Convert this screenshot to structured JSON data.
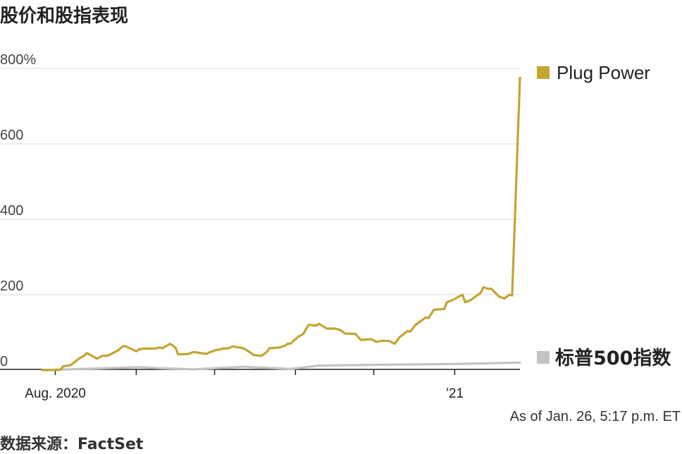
{
  "title": "股价和股指表现",
  "note": "As of Jan. 26, 5:17 p.m. ET",
  "source": "数据来源：FactSet",
  "colors": {
    "plug": "#c3a532",
    "sp500": "#c3c3c5",
    "grid": "#dddddd",
    "axis": "#222222"
  },
  "chart_data": {
    "type": "line",
    "ylim": [
      0,
      800
    ],
    "yticks": [
      {
        "value": 800,
        "label": "800%"
      },
      {
        "value": 600,
        "label": "600"
      },
      {
        "value": 400,
        "label": "400"
      },
      {
        "value": 200,
        "label": "200"
      },
      {
        "value": 0,
        "label": "0"
      }
    ],
    "xlim": [
      "2020-07-27",
      "2021-01-26"
    ],
    "xticks": [
      {
        "date": "2020-08-01",
        "label": "Aug. 2020"
      },
      {
        "date": "2020-09-01",
        "label": ""
      },
      {
        "date": "2020-10-01",
        "label": ""
      },
      {
        "date": "2020-11-01",
        "label": ""
      },
      {
        "date": "2020-12-01",
        "label": ""
      },
      {
        "date": "2021-01-01",
        "label": "’21"
      }
    ],
    "series": [
      {
        "name": "Plug Power",
        "color": "#c3a532",
        "points": [
          [
            "2020-07-27",
            0
          ],
          [
            "2020-07-30",
            0
          ],
          [
            "2020-08-03",
            1
          ],
          [
            "2020-08-04",
            10
          ],
          [
            "2020-08-06",
            12
          ],
          [
            "2020-08-07",
            14
          ],
          [
            "2020-08-10",
            30
          ],
          [
            "2020-08-12",
            38
          ],
          [
            "2020-08-13",
            45
          ],
          [
            "2020-08-14",
            42
          ],
          [
            "2020-08-17",
            30
          ],
          [
            "2020-08-19",
            38
          ],
          [
            "2020-08-21",
            38
          ],
          [
            "2020-08-25",
            52
          ],
          [
            "2020-08-27",
            64
          ],
          [
            "2020-08-28",
            63
          ],
          [
            "2020-09-01",
            50
          ],
          [
            "2020-09-02",
            55
          ],
          [
            "2020-09-04",
            57
          ],
          [
            "2020-09-08",
            57
          ],
          [
            "2020-09-10",
            60
          ],
          [
            "2020-09-11",
            58
          ],
          [
            "2020-09-14",
            70
          ],
          [
            "2020-09-16",
            60
          ],
          [
            "2020-09-17",
            42
          ],
          [
            "2020-09-18",
            42
          ],
          [
            "2020-09-21",
            43
          ],
          [
            "2020-09-23",
            48
          ],
          [
            "2020-09-25",
            46
          ],
          [
            "2020-09-28",
            43
          ],
          [
            "2020-09-29",
            47
          ],
          [
            "2020-10-01",
            52
          ],
          [
            "2020-10-05",
            58
          ],
          [
            "2020-10-06",
            57
          ],
          [
            "2020-10-08",
            63
          ],
          [
            "2020-10-12",
            58
          ],
          [
            "2020-10-14",
            50
          ],
          [
            "2020-10-16",
            40
          ],
          [
            "2020-10-19",
            38
          ],
          [
            "2020-10-21",
            48
          ],
          [
            "2020-10-22",
            58
          ],
          [
            "2020-10-26",
            60
          ],
          [
            "2020-10-28",
            65
          ],
          [
            "2020-10-29",
            70
          ],
          [
            "2020-10-30",
            70
          ],
          [
            "2020-11-02",
            88
          ],
          [
            "2020-11-04",
            96
          ],
          [
            "2020-11-06",
            120
          ],
          [
            "2020-11-09",
            118
          ],
          [
            "2020-11-10",
            123
          ],
          [
            "2020-11-13",
            110
          ],
          [
            "2020-11-16",
            110
          ],
          [
            "2020-11-18",
            107
          ],
          [
            "2020-11-20",
            97
          ],
          [
            "2020-11-24",
            96
          ],
          [
            "2020-11-26",
            80
          ],
          [
            "2020-11-30",
            82
          ],
          [
            "2020-12-02",
            75
          ],
          [
            "2020-12-04",
            78
          ],
          [
            "2020-12-07",
            77
          ],
          [
            "2020-12-09",
            70
          ],
          [
            "2020-12-11",
            88
          ],
          [
            "2020-12-14",
            104
          ],
          [
            "2020-12-15",
            102
          ],
          [
            "2020-12-17",
            120
          ],
          [
            "2020-12-18",
            125
          ],
          [
            "2020-12-21",
            140
          ],
          [
            "2020-12-22",
            138
          ],
          [
            "2020-12-24",
            160
          ],
          [
            "2020-12-28",
            162
          ],
          [
            "2020-12-29",
            180
          ],
          [
            "2020-12-31",
            185
          ],
          [
            "2021-01-04",
            200
          ],
          [
            "2021-01-05",
            180
          ],
          [
            "2021-01-07",
            185
          ],
          [
            "2021-01-11",
            205
          ],
          [
            "2021-01-12",
            220
          ],
          [
            "2021-01-14",
            215
          ],
          [
            "2021-01-15",
            216
          ],
          [
            "2021-01-18",
            195
          ],
          [
            "2021-01-20",
            190
          ],
          [
            "2021-01-22",
            200
          ],
          [
            "2021-01-23",
            198
          ],
          [
            "2021-01-26",
            775
          ]
        ]
      },
      {
        "name": "标普500指数",
        "color": "#c3c3c5",
        "points": [
          [
            "2020-07-27",
            0
          ],
          [
            "2020-08-15",
            4
          ],
          [
            "2020-09-03",
            8
          ],
          [
            "2020-09-10",
            5
          ],
          [
            "2020-09-23",
            2
          ],
          [
            "2020-10-12",
            9
          ],
          [
            "2020-10-30",
            3
          ],
          [
            "2020-11-10",
            12
          ],
          [
            "2020-12-01",
            14
          ],
          [
            "2020-12-31",
            16
          ],
          [
            "2021-01-26",
            20
          ]
        ]
      }
    ]
  }
}
